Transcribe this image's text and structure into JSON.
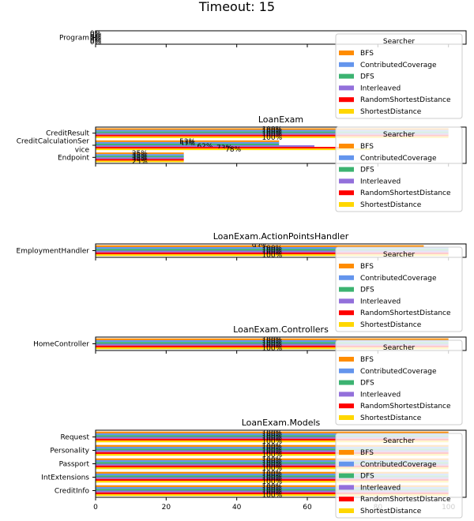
{
  "figure": {
    "title": "Timeout: 15"
  },
  "legend": {
    "title": "Searcher",
    "placement": "right"
  },
  "colors": {
    "BFS": "#ff8c00",
    "ContributedCoverage": "#6495ed",
    "DFS": "#3cb371",
    "Interleaved": "#9370db",
    "RandomShortestDistance": "#ff0000",
    "ShortestDistance": "#ffd700"
  },
  "chart_data": [
    {
      "type": "bar",
      "orientation": "horizontal",
      "title": "",
      "categories": [
        "Program"
      ],
      "series": [
        {
          "name": "BFS",
          "values": [
            0
          ]
        },
        {
          "name": "ContributedCoverage",
          "values": [
            0
          ]
        },
        {
          "name": "DFS",
          "values": [
            0
          ]
        },
        {
          "name": "Interleaved",
          "values": [
            0
          ]
        },
        {
          "name": "RandomShortestDistance",
          "values": [
            0
          ]
        },
        {
          "name": "ShortestDistance",
          "values": [
            0
          ]
        }
      ],
      "xlim": [
        0,
        105
      ],
      "show_xticks": false
    },
    {
      "type": "bar",
      "orientation": "horizontal",
      "title": "LoanExam",
      "categories": [
        "CreditResult",
        "CreditCalculationService",
        "Endpoint"
      ],
      "tick_labels": [
        [
          "CreditResult"
        ],
        [
          "CreditCalculationSer",
          "vice"
        ],
        [
          "Endpoint"
        ]
      ],
      "series": [
        {
          "name": "BFS",
          "values": [
            100,
            52,
            25
          ]
        },
        {
          "name": "ContributedCoverage",
          "values": [
            100,
            52,
            25
          ]
        },
        {
          "name": "DFS",
          "values": [
            100,
            52,
            25
          ]
        },
        {
          "name": "Interleaved",
          "values": [
            100,
            62,
            25
          ]
        },
        {
          "name": "RandomShortestDistance",
          "values": [
            100,
            73,
            25
          ]
        },
        {
          "name": "ShortestDistance",
          "values": [
            100,
            78,
            25
          ]
        }
      ],
      "xlim": [
        0,
        105
      ],
      "show_xticks": false
    },
    {
      "type": "bar",
      "orientation": "horizontal",
      "title": "LoanExam.ActionPointsHandler",
      "categories": [
        "EmploymentHandler"
      ],
      "series": [
        {
          "name": "BFS",
          "values": [
            93
          ]
        },
        {
          "name": "ContributedCoverage",
          "values": [
            100
          ]
        },
        {
          "name": "DFS",
          "values": [
            100
          ]
        },
        {
          "name": "Interleaved",
          "values": [
            100
          ]
        },
        {
          "name": "RandomShortestDistance",
          "values": [
            100
          ]
        },
        {
          "name": "ShortestDistance",
          "values": [
            100
          ]
        }
      ],
      "xlim": [
        0,
        105
      ],
      "show_xticks": false
    },
    {
      "type": "bar",
      "orientation": "horizontal",
      "title": "LoanExam.Controllers",
      "categories": [
        "HomeController"
      ],
      "series": [
        {
          "name": "BFS",
          "values": [
            100
          ]
        },
        {
          "name": "ContributedCoverage",
          "values": [
            100
          ]
        },
        {
          "name": "DFS",
          "values": [
            100
          ]
        },
        {
          "name": "Interleaved",
          "values": [
            100
          ]
        },
        {
          "name": "RandomShortestDistance",
          "values": [
            100
          ]
        },
        {
          "name": "ShortestDistance",
          "values": [
            100
          ]
        }
      ],
      "xlim": [
        0,
        105
      ],
      "show_xticks": false
    },
    {
      "type": "bar",
      "orientation": "horizontal",
      "title": "LoanExam.Models",
      "categories": [
        "Request",
        "Personality",
        "Passport",
        "IntExtensions",
        "CreditInfo"
      ],
      "series": [
        {
          "name": "BFS",
          "values": [
            100,
            100,
            100,
            100,
            100
          ]
        },
        {
          "name": "ContributedCoverage",
          "values": [
            100,
            100,
            100,
            100,
            100
          ]
        },
        {
          "name": "DFS",
          "values": [
            100,
            100,
            100,
            100,
            100
          ]
        },
        {
          "name": "Interleaved",
          "values": [
            100,
            100,
            100,
            100,
            100
          ]
        },
        {
          "name": "RandomShortestDistance",
          "values": [
            100,
            100,
            100,
            100,
            100
          ]
        },
        {
          "name": "ShortestDistance",
          "values": [
            100,
            100,
            100,
            100,
            100
          ]
        }
      ],
      "xlim": [
        0,
        105
      ],
      "xticks": [
        0,
        20,
        40,
        60,
        80,
        100
      ],
      "show_xticks": true
    }
  ]
}
